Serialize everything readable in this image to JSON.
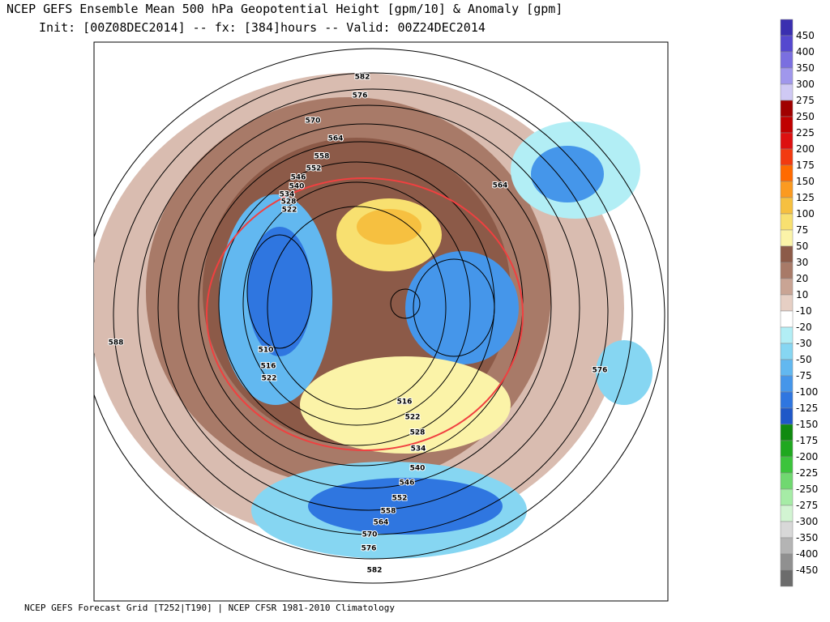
{
  "header": {
    "title": "NCEP GEFS Ensemble Mean 500 hPa Geopotential Height [gpm/10] & Anomaly [gpm]",
    "subtitle": "Init: [00Z08DEC2014] -- fx: [384]hours -- Valid: 00Z24DEC2014"
  },
  "colorbar": {
    "labels": [
      "450",
      "400",
      "350",
      "300",
      "275",
      "250",
      "225",
      "200",
      "175",
      "150",
      "125",
      "100",
      "75",
      "50",
      "30",
      "20",
      "10",
      "-10",
      "-20",
      "-30",
      "-50",
      "-75",
      "-100",
      "-125",
      "-150",
      "-175",
      "-200",
      "-225",
      "-250",
      "-275",
      "-300",
      "-350",
      "-400",
      "-450"
    ],
    "colors": [
      "#3a2fb0",
      "#5548cf",
      "#7a6fe0",
      "#a097ec",
      "#cfc9f4",
      "#a00000",
      "#c00000",
      "#dd1010",
      "#f23a10",
      "#ff6a00",
      "#fb9a20",
      "#f6c040",
      "#f8e070",
      "#fbf3a8",
      "#8c5a48",
      "#a87a68",
      "#c9a494",
      "#e6cfc4",
      "#ffffff",
      "#b2eef5",
      "#86d6f2",
      "#62b8f0",
      "#4596ea",
      "#2f76e0",
      "#1f58c8",
      "#108a10",
      "#1fa81f",
      "#3cc43c",
      "#70d870",
      "#a6eca6",
      "#d2f4d2",
      "#d8d8d8",
      "#b4b4b4",
      "#909090",
      "#6c6c6c"
    ]
  },
  "contour_labels": [
    "582",
    "576",
    "570",
    "564",
    "558",
    "552",
    "546",
    "540",
    "534",
    "528",
    "522",
    "564",
    "510",
    "516",
    "522",
    "516",
    "522",
    "528",
    "534",
    "540",
    "546",
    "552",
    "558",
    "564",
    "570",
    "576",
    "582",
    "588",
    "576"
  ],
  "footer": "NCEP GEFS Forecast Grid [T252|T190] | NCEP CFSR 1981-2010 Climatology"
}
